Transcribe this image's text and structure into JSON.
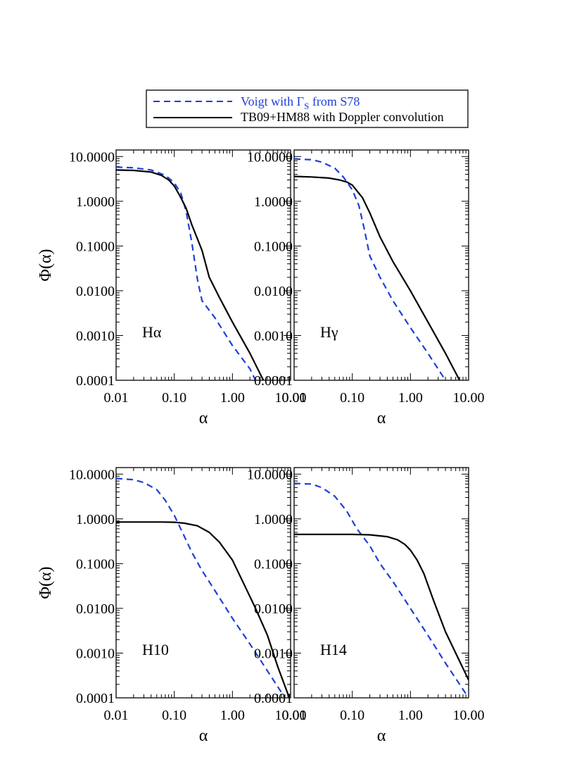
{
  "legend": {
    "entries": [
      {
        "label": "Voigt with Γ",
        "sub": "S",
        "suffix": " from S78",
        "color": "#1f3fd8",
        "style": "dashed"
      },
      {
        "label": "TB09+HM88 with Doppler convolution",
        "sub": "",
        "suffix": "",
        "color": "#000000",
        "style": "solid"
      }
    ]
  },
  "axes": {
    "xlabel": "α",
    "ylabel": "Φ(α)",
    "x_ticks": [
      "0.01",
      "0.10",
      "1.00",
      "10.00"
    ],
    "y_ticks": [
      "0.0001",
      "0.0010",
      "0.0100",
      "0.1000",
      "1.0000",
      "10.0000"
    ]
  },
  "chart_data": [
    {
      "type": "line",
      "panel_label": "Hα",
      "xscale": "log",
      "yscale": "log",
      "xlim": [
        0.01,
        10
      ],
      "ylim": [
        0.0001,
        14
      ],
      "xlabel": "α",
      "ylabel": "Φ(α)",
      "series": [
        {
          "name": "Voigt with ΓS from S78",
          "color": "#1f3fd8",
          "style": "dashed",
          "x": [
            0.01,
            0.02,
            0.04,
            0.07,
            0.1,
            0.13,
            0.16,
            0.2,
            0.25,
            0.3,
            0.5,
            1.0,
            2.0,
            2.5
          ],
          "y": [
            5.8,
            5.6,
            5.0,
            3.8,
            2.6,
            1.5,
            0.6,
            0.12,
            0.018,
            0.006,
            0.0025,
            0.0006,
            0.00018,
            0.0001
          ]
        },
        {
          "name": "TB09+HM88 with Doppler convolution",
          "color": "#000000",
          "style": "solid",
          "x": [
            0.01,
            0.02,
            0.04,
            0.06,
            0.08,
            0.1,
            0.13,
            0.16,
            0.2,
            0.3,
            0.4,
            0.6,
            1.0,
            2.0,
            3.4
          ],
          "y": [
            5.0,
            4.9,
            4.5,
            3.8,
            3.0,
            2.2,
            1.2,
            0.7,
            0.3,
            0.08,
            0.02,
            0.007,
            0.002,
            0.0004,
            0.0001
          ]
        }
      ]
    },
    {
      "type": "line",
      "panel_label": "Hγ",
      "xscale": "log",
      "yscale": "log",
      "xlim": [
        0.01,
        10
      ],
      "ylim": [
        0.0001,
        14
      ],
      "xlabel": "α",
      "ylabel": "",
      "series": [
        {
          "name": "Voigt with ΓS from S78",
          "color": "#1f3fd8",
          "style": "dashed",
          "x": [
            0.01,
            0.02,
            0.03,
            0.05,
            0.07,
            0.1,
            0.13,
            0.16,
            0.2,
            0.3,
            0.5,
            1.0,
            2.0,
            4.0
          ],
          "y": [
            8.8,
            8.5,
            7.5,
            5.5,
            3.5,
            1.8,
            0.8,
            0.25,
            0.06,
            0.02,
            0.006,
            0.0015,
            0.0004,
            0.0001
          ]
        },
        {
          "name": "TB09+HM88 with Doppler convolution",
          "color": "#000000",
          "style": "solid",
          "x": [
            0.01,
            0.02,
            0.04,
            0.06,
            0.08,
            0.1,
            0.15,
            0.2,
            0.3,
            0.5,
            1.0,
            2.0,
            4.0,
            7.0
          ],
          "y": [
            3.6,
            3.5,
            3.3,
            3.0,
            2.7,
            2.3,
            1.2,
            0.55,
            0.16,
            0.045,
            0.01,
            0.002,
            0.0004,
            0.0001
          ]
        }
      ]
    },
    {
      "type": "line",
      "panel_label": "H10",
      "xscale": "log",
      "yscale": "log",
      "xlim": [
        0.01,
        10
      ],
      "ylim": [
        0.0001,
        14
      ],
      "xlabel": "α",
      "ylabel": "Φ(α)",
      "series": [
        {
          "name": "Voigt with ΓS from S78",
          "color": "#1f3fd8",
          "style": "dashed",
          "x": [
            0.01,
            0.02,
            0.03,
            0.05,
            0.07,
            0.1,
            0.15,
            0.2,
            0.3,
            0.5,
            1.0,
            2.0,
            4.0,
            8.0
          ],
          "y": [
            8.0,
            7.5,
            6.5,
            4.5,
            2.6,
            1.2,
            0.4,
            0.18,
            0.07,
            0.025,
            0.006,
            0.0016,
            0.0004,
            0.0001
          ]
        },
        {
          "name": "TB09+HM88 with Doppler convolution",
          "color": "#000000",
          "style": "solid",
          "x": [
            0.01,
            0.03,
            0.06,
            0.1,
            0.15,
            0.25,
            0.4,
            0.6,
            1.0,
            1.5,
            2.5,
            4.0,
            6.0,
            9.5
          ],
          "y": [
            0.85,
            0.85,
            0.85,
            0.84,
            0.8,
            0.7,
            0.5,
            0.3,
            0.12,
            0.04,
            0.01,
            0.0025,
            0.0005,
            0.0001
          ]
        }
      ]
    },
    {
      "type": "line",
      "panel_label": "H14",
      "xscale": "log",
      "yscale": "log",
      "xlim": [
        0.01,
        10
      ],
      "ylim": [
        0.0001,
        14
      ],
      "xlabel": "α",
      "ylabel": "",
      "series": [
        {
          "name": "Voigt with ΓS from S78",
          "color": "#1f3fd8",
          "style": "dashed",
          "x": [
            0.01,
            0.02,
            0.03,
            0.05,
            0.08,
            0.12,
            0.2,
            0.3,
            0.5,
            1.0,
            2.0,
            4.0,
            10.0
          ],
          "y": [
            6.2,
            6.0,
            5.0,
            3.2,
            1.5,
            0.6,
            0.25,
            0.1,
            0.04,
            0.01,
            0.0025,
            0.0006,
            0.0001
          ]
        },
        {
          "name": "TB09+HM88 with Doppler convolution",
          "color": "#000000",
          "style": "solid",
          "x": [
            0.01,
            0.05,
            0.1,
            0.2,
            0.4,
            0.6,
            0.8,
            1.0,
            1.3,
            1.7,
            2.5,
            4.0,
            6.0,
            10.0
          ],
          "y": [
            0.45,
            0.45,
            0.45,
            0.44,
            0.4,
            0.34,
            0.27,
            0.2,
            0.12,
            0.06,
            0.015,
            0.003,
            0.001,
            0.00025
          ]
        }
      ]
    }
  ]
}
